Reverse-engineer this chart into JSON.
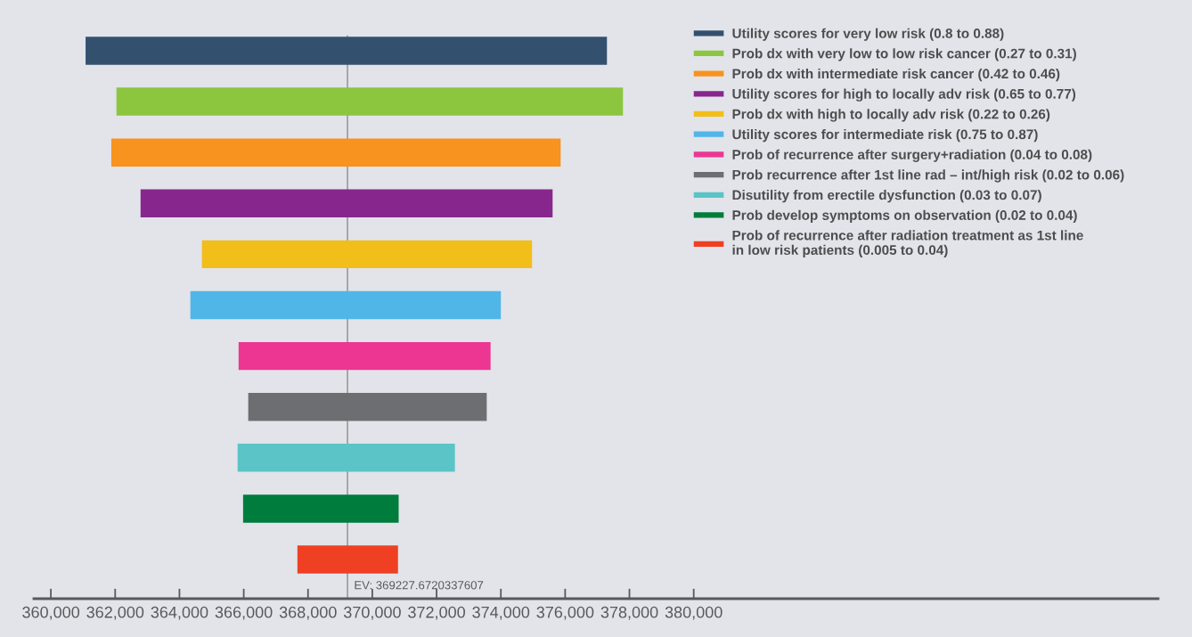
{
  "chart_data": {
    "type": "bar",
    "orientation": "horizontal",
    "categories": [
      null,
      null,
      null,
      null,
      null,
      null,
      null,
      null,
      null,
      null,
      null
    ],
    "series": [
      {
        "name": "Utility scores for very low risk (0.8 to 0.88)",
        "color": "#34506f",
        "base": [
          361080,
          null,
          null,
          null,
          null,
          null,
          null,
          null,
          null,
          null,
          null
        ],
        "values": [
          16220,
          null,
          null,
          null,
          null,
          null,
          null,
          null,
          null,
          null,
          null
        ]
      },
      {
        "name": "Prob dx with very low to low risk cancer (0.27 to 0.31)",
        "color": "#8cc63f",
        "base": [
          null,
          362040,
          null,
          null,
          null,
          null,
          null,
          null,
          null,
          null,
          null
        ],
        "values": [
          null,
          15760,
          null,
          null,
          null,
          null,
          null,
          null,
          null,
          null,
          null
        ]
      },
      {
        "name": "Prob dx with intermediate risk cancer (0.42 to 0.46)",
        "color": "#f7931e",
        "base": [
          null,
          null,
          361880,
          null,
          null,
          null,
          null,
          null,
          null,
          null,
          null
        ],
        "values": [
          null,
          null,
          13980,
          null,
          null,
          null,
          null,
          null,
          null,
          null,
          null
        ]
      },
      {
        "name": "Utility scores for high to locally adv risk (0.65 to 0.77)",
        "color": "#87278d",
        "base": [
          null,
          null,
          null,
          362790,
          null,
          null,
          null,
          null,
          null,
          null,
          null
        ],
        "values": [
          null,
          null,
          null,
          12820,
          null,
          null,
          null,
          null,
          null,
          null,
          null
        ]
      },
      {
        "name": "Prob dx with high to locally adv risk (0.22 to 0.26)",
        "color": "#f2be1a",
        "base": [
          null,
          null,
          null,
          null,
          364700,
          null,
          null,
          null,
          null,
          null,
          null
        ],
        "values": [
          null,
          null,
          null,
          null,
          10270,
          null,
          null,
          null,
          null,
          null,
          null
        ]
      },
      {
        "name": "Utility scores for intermediate risk (0.75 to 0.87)",
        "color": "#50b6e8",
        "base": [
          null,
          null,
          null,
          null,
          null,
          364340,
          null,
          null,
          null,
          null,
          null
        ],
        "values": [
          null,
          null,
          null,
          null,
          null,
          9660,
          null,
          null,
          null,
          null,
          null
        ]
      },
      {
        "name": "Prob of recurrence after surgery+radiation (0.04 to 0.08)",
        "color": "#ec3692",
        "base": [
          null,
          null,
          null,
          null,
          null,
          null,
          365840,
          null,
          null,
          null,
          null
        ],
        "values": [
          null,
          null,
          null,
          null,
          null,
          null,
          7840,
          null,
          null,
          null,
          null
        ]
      },
      {
        "name": "Prob recurrence after 1st line rad – int/high risk (0.02 to 0.06)",
        "color": "#6d6e71",
        "base": [
          null,
          null,
          null,
          null,
          null,
          null,
          null,
          366140,
          null,
          null,
          null
        ],
        "values": [
          null,
          null,
          null,
          null,
          null,
          null,
          null,
          7420,
          null,
          null,
          null
        ]
      },
      {
        "name": "Disutility from erectile dysfunction (0.03 to 0.07)",
        "color": "#5bc4c6",
        "base": [
          null,
          null,
          null,
          null,
          null,
          null,
          null,
          null,
          365810,
          null,
          null
        ],
        "values": [
          null,
          null,
          null,
          null,
          null,
          null,
          null,
          null,
          6760,
          null,
          null
        ]
      },
      {
        "name": "Prob develop symptoms on observation (0.02 to 0.04)",
        "color": "#007c3c",
        "base": [
          null,
          null,
          null,
          null,
          null,
          null,
          null,
          null,
          null,
          365980,
          null
        ],
        "values": [
          null,
          null,
          null,
          null,
          null,
          null,
          null,
          null,
          null,
          4840,
          null
        ]
      },
      {
        "name": "Prob of recurrence after radiation treatment as 1st line\nin low risk patients (0.005 to 0.04)",
        "color": "#ef4023",
        "base": [
          null,
          null,
          null,
          null,
          null,
          null,
          null,
          null,
          null,
          null,
          367670
        ],
        "values": [
          null,
          null,
          null,
          null,
          null,
          null,
          null,
          null,
          null,
          null,
          3130
        ]
      }
    ],
    "xlim": [
      359470,
      394450
    ],
    "xticks": [
      {
        "value": 360000,
        "label": "360,000"
      },
      {
        "value": 362000,
        "label": "362,000"
      },
      {
        "value": 364000,
        "label": "364,000"
      },
      {
        "value": 366000,
        "label": "366,000"
      },
      {
        "value": 368000,
        "label": "368,000"
      },
      {
        "value": 370000,
        "label": "370,000"
      },
      {
        "value": 372000,
        "label": "372,000"
      },
      {
        "value": 374000,
        "label": "374,000"
      },
      {
        "value": 376000,
        "label": "376,000"
      },
      {
        "value": 378000,
        "label": "378,000"
      },
      {
        "value": 380000,
        "label": "380,000"
      }
    ],
    "ref_lines": [
      {
        "axis": "x",
        "value": 369227.6720337607,
        "label": "EV: 369227.6720337607",
        "color": "#9a9b9e"
      }
    ],
    "tick_labels": "x",
    "grid": false,
    "legend": "top right"
  }
}
